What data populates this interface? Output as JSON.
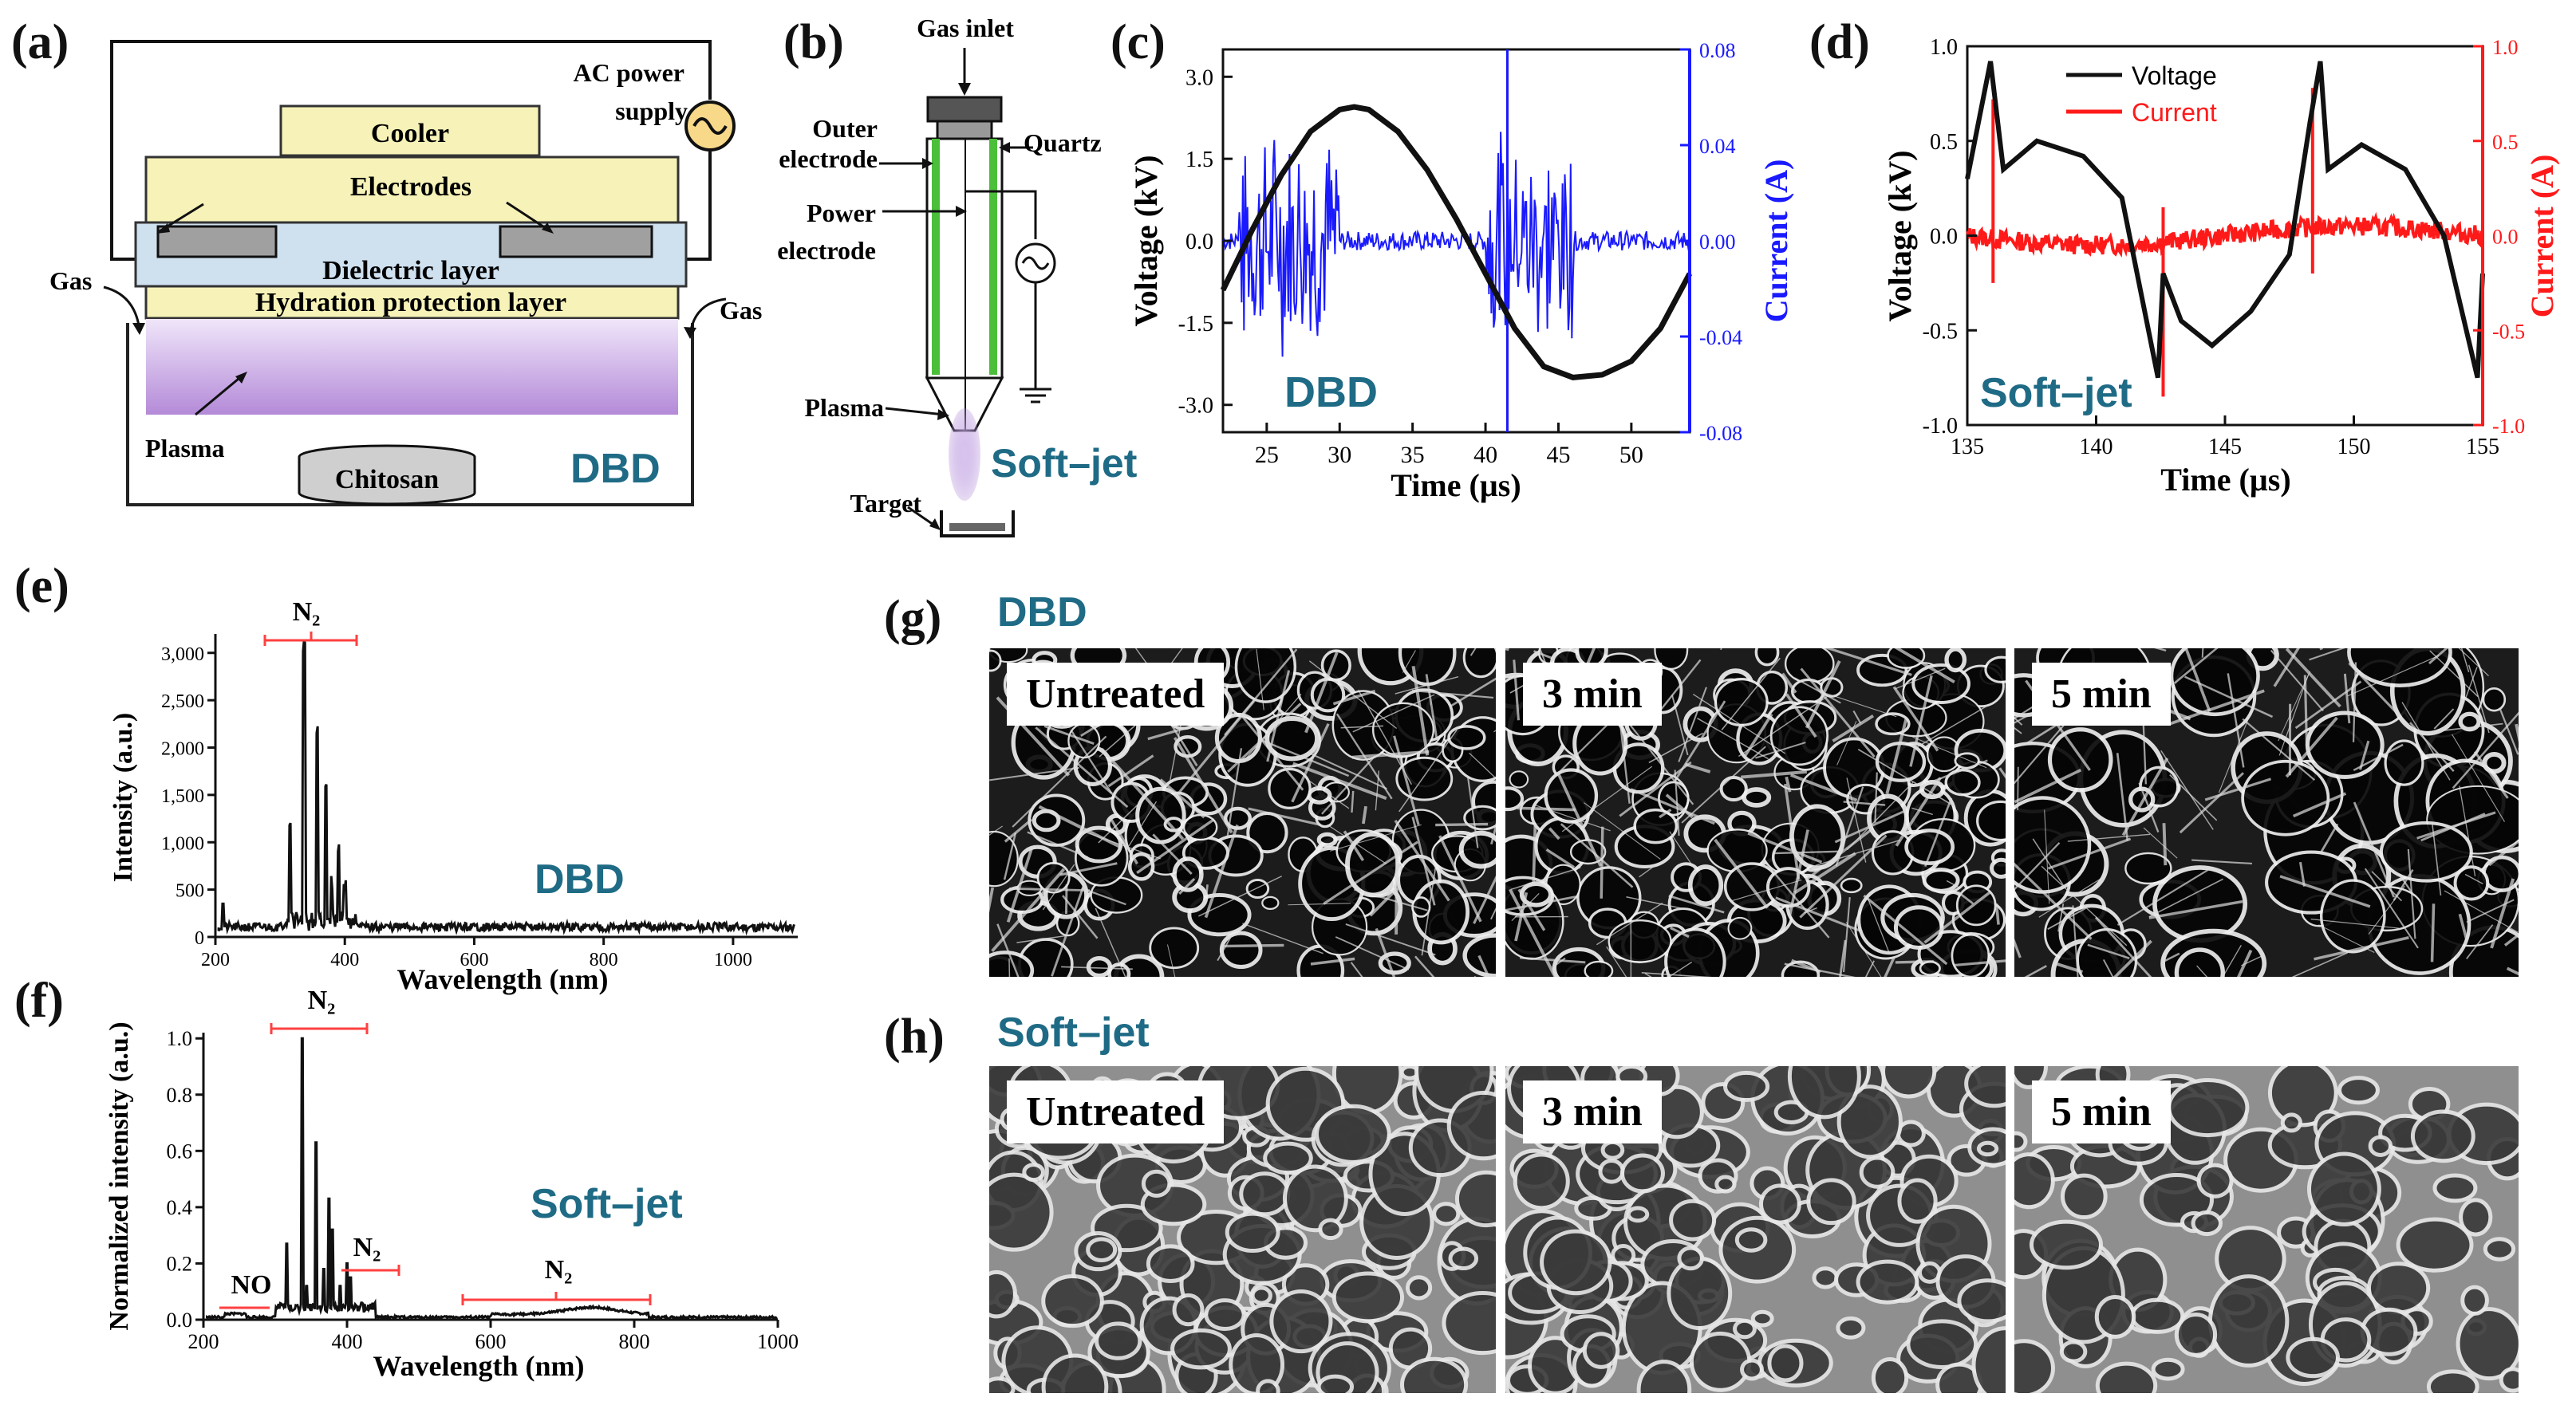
{
  "panel_labels": {
    "a": "(a)",
    "b": "(b)",
    "c": "(c)",
    "d": "(d)",
    "e": "(e)",
    "f": "(f)",
    "g": "(g)",
    "h": "(h)"
  },
  "panel_a": {
    "cooler": "Cooler",
    "ac_supply_1": "AC power",
    "ac_supply_2": "supply",
    "electrodes": "Electrodes",
    "dielectric": "Dielectric layer",
    "hydration": "Hydration protection layer",
    "gas_left": "Gas",
    "gas_right": "Gas",
    "plasma": "Plasma",
    "chitosan": "Chitosan",
    "tag": "DBD"
  },
  "panel_b": {
    "gas_inlet": "Gas inlet",
    "outer_1": "Outer",
    "outer_2": "electrode",
    "quartz": "Quartz",
    "power_1": "Power",
    "power_2": "electrode",
    "plasma": "Plasma",
    "target": "Target",
    "tag": "Soft–jet"
  },
  "panel_c": {
    "xlabel": "Time (µs)",
    "ylabel_left": "Voltage (kV)",
    "ylabel_right": "Current (A)",
    "tag": "DBD",
    "xticks": [
      "25",
      "30",
      "35",
      "40",
      "45",
      "50"
    ],
    "yticks_left": [
      "3.0",
      "1.5",
      "0.0",
      "-1.5",
      "-3.0"
    ],
    "yticks_right": [
      "0.08",
      "0.04",
      "0.00",
      "-0.04",
      "-0.08"
    ]
  },
  "panel_d": {
    "xlabel": "Time (µs)",
    "ylabel_left": "Voltage (kV)",
    "ylabel_right": "Current (A)",
    "legend_voltage": "Voltage",
    "legend_current": "Current",
    "tag": "Soft–jet",
    "xticks": [
      "135",
      "140",
      "145",
      "150",
      "155"
    ],
    "yticks_left": [
      "1.0",
      "0.5",
      "0.0",
      "-0.5",
      "-1.0"
    ],
    "yticks_right": [
      "1.0",
      "0.5",
      "0.0",
      "-0.5",
      "-1.0"
    ]
  },
  "panel_e": {
    "xlabel": "Wavelength (nm)",
    "ylabel": "Intensity (a.u.)",
    "peak_label": "N₂",
    "tag": "DBD",
    "xticks": [
      "200",
      "400",
      "600",
      "800",
      "1000"
    ],
    "yticks": [
      "3,000",
      "2,500",
      "2,000",
      "1,500",
      "1,000",
      "500",
      "0"
    ]
  },
  "panel_f": {
    "xlabel": "Wavelength (nm)",
    "ylabel": "Normalized intensity (a.u.)",
    "label_n2_main": "N₂",
    "label_n2_mid": "N₂",
    "label_n2_far": "N₂",
    "label_no": "NO",
    "tag": "Soft–jet",
    "xticks": [
      "200",
      "400",
      "600",
      "800",
      "1000"
    ],
    "yticks": [
      "1.0",
      "0.8",
      "0.6",
      "0.4",
      "0.2",
      "0.0"
    ]
  },
  "panel_g": {
    "tag": "DBD",
    "images": [
      "Untreated",
      "3 min",
      "5 min"
    ]
  },
  "panel_h": {
    "tag": "Soft–jet",
    "images": [
      "Untreated",
      "3 min",
      "5 min"
    ]
  },
  "colors": {
    "teal": "#1f6b86",
    "blue": "#1a1aff",
    "red": "#ff1a1a",
    "plasma": "#c9a9e0",
    "layer_yellow": "#f7f3b8",
    "layer_blue": "#cfe0ef"
  },
  "chart_data": [
    {
      "id": "c",
      "type": "line",
      "xlim": [
        22,
        54
      ],
      "series": [
        {
          "axis": "left",
          "ylim": [
            -3.5,
            3.5
          ],
          "x": [
            22,
            24,
            26,
            28,
            30,
            31,
            32,
            34,
            36,
            38,
            40,
            42,
            44,
            46,
            48,
            50,
            52,
            54
          ],
          "values": [
            -0.9,
            0.2,
            1.2,
            2.0,
            2.4,
            2.45,
            2.4,
            2.0,
            1.3,
            0.4,
            -0.6,
            -1.6,
            -2.3,
            -2.5,
            -2.45,
            -2.2,
            -1.6,
            -0.6
          ]
        },
        {
          "axis": "right",
          "ylim": [
            -0.08,
            0.08
          ],
          "x": [
            22,
            41.5,
            54
          ],
          "values": [
            0,
            0,
            0
          ]
        }
      ]
    },
    {
      "id": "d",
      "type": "line",
      "xlim": [
        135,
        155
      ],
      "series": [
        {
          "name": "Voltage",
          "axis": "left",
          "ylim": [
            -1,
            1
          ],
          "x": [
            135,
            135.9,
            136.4,
            137.7,
            139.5,
            141,
            142.4,
            142.6,
            143.3,
            144.5,
            146,
            147.5,
            148.3,
            148.7,
            149,
            150.3,
            152,
            153.5,
            154.8,
            155
          ],
          "values": [
            0.3,
            0.92,
            0.35,
            0.5,
            0.42,
            0.2,
            -0.75,
            -0.2,
            -0.45,
            -0.58,
            -0.4,
            -0.1,
            0.6,
            0.92,
            0.35,
            0.48,
            0.35,
            0.0,
            -0.75,
            -0.2
          ]
        },
        {
          "name": "Current",
          "axis": "right",
          "ylim": [
            -1,
            1
          ],
          "x": [
            135,
            136,
            142.6,
            148.5,
            155
          ],
          "values": [
            0,
            0,
            -0.1,
            0,
            -0.1
          ]
        }
      ]
    },
    {
      "id": "e",
      "type": "line",
      "xlim": [
        200,
        1100
      ],
      "ylim": [
        0,
        3200
      ],
      "x": [
        210,
        300,
        315,
        330,
        340,
        357,
        371,
        380,
        400,
        600,
        800,
        1000,
        1100
      ],
      "values": [
        350,
        300,
        1150,
        3000,
        300,
        2150,
        1480,
        900,
        300,
        100,
        100,
        100,
        100
      ]
    },
    {
      "id": "f",
      "type": "line",
      "xlim": [
        200,
        1000
      ],
      "ylim": [
        0,
        1.0
      ],
      "x": [
        200,
        250,
        315,
        337,
        357,
        375,
        380,
        400,
        420,
        500,
        600,
        700,
        750,
        800,
        900,
        1000
      ],
      "values": [
        0,
        0.01,
        0.27,
        1.0,
        0.63,
        0.43,
        0.32,
        0.15,
        0.06,
        0.01,
        0.01,
        0.02,
        0.05,
        0.02,
        0.01,
        0.0
      ]
    }
  ]
}
